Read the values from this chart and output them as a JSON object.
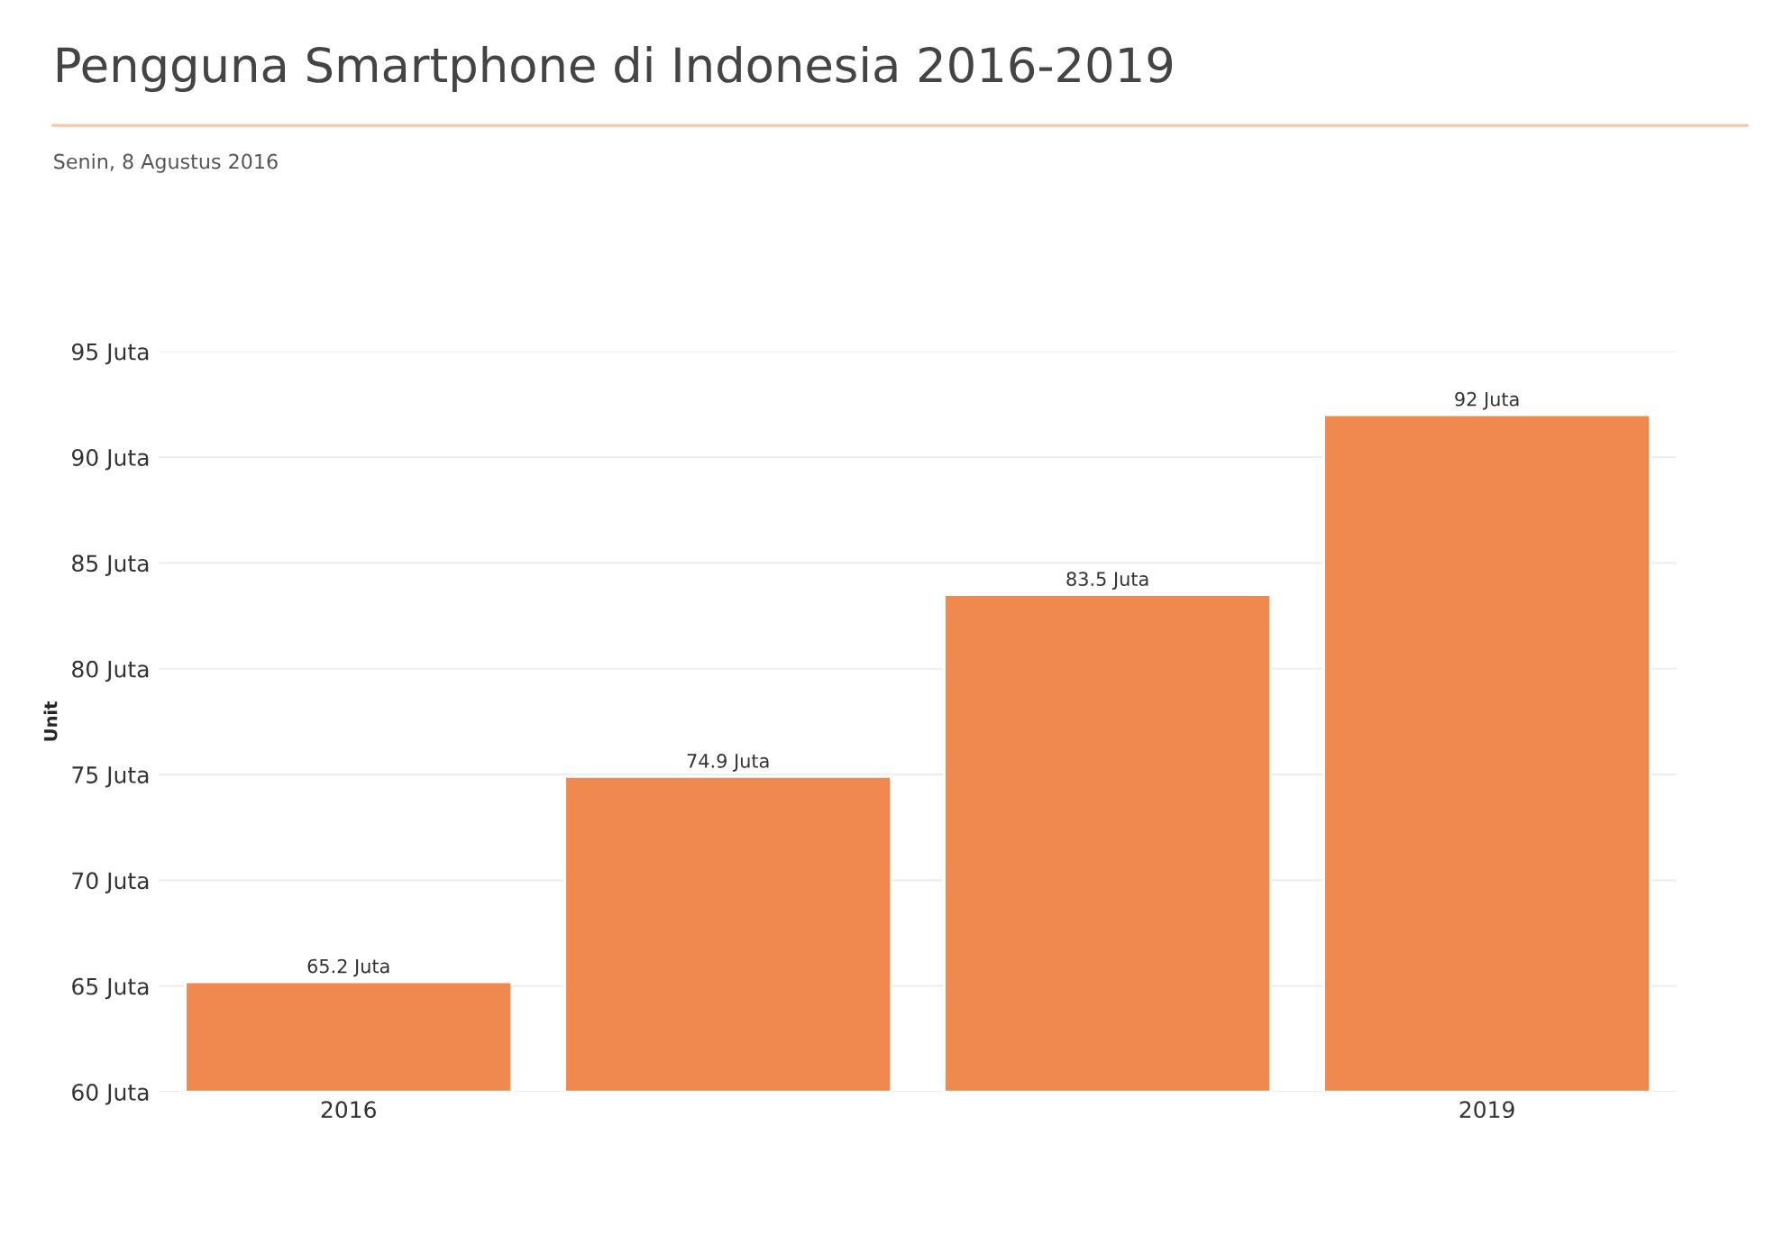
{
  "chart_data": {
    "type": "bar",
    "title": "Pengguna Smartphone di Indonesia 2016-2019",
    "subtitle": "Senin, 8 Agustus 2016",
    "ylabel": "Unit",
    "categories": [
      "2016",
      null,
      null,
      "2019"
    ],
    "values": [
      65.2,
      74.9,
      83.5,
      92
    ],
    "value_labels": [
      "65.2 Juta",
      "74.9 Juta",
      "83.5 Juta",
      "92 Juta"
    ],
    "color": "#f0894f",
    "ylim": [
      60,
      95
    ],
    "yticks": [
      {
        "value": 60,
        "label": "60 Juta"
      },
      {
        "value": 65,
        "label": "65 Juta"
      },
      {
        "value": 70,
        "label": "70 Juta"
      },
      {
        "value": 75,
        "label": "75 Juta"
      },
      {
        "value": 80,
        "label": "80 Juta"
      },
      {
        "value": 85,
        "label": "85 Juta"
      },
      {
        "value": 90,
        "label": "90 Juta"
      },
      {
        "value": 95,
        "label": "95 Juta"
      }
    ],
    "grid": "y"
  }
}
